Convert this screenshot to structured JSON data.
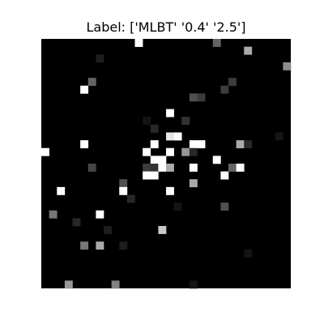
{
  "chart_data": {
    "type": "heatmap",
    "title": "Label: ['MLBT' '0.4' '2.5']",
    "rows": 32,
    "cols": 32,
    "colormap": "gray",
    "background_value": 0,
    "axes_visible": false,
    "cells": [
      [
        0,
        12,
        255
      ],
      [
        0,
        22,
        100
      ],
      [
        1,
        26,
        170
      ],
      [
        2,
        7,
        30
      ],
      [
        3,
        31,
        140
      ],
      [
        5,
        6,
        100
      ],
      [
        5,
        24,
        60
      ],
      [
        6,
        5,
        255
      ],
      [
        6,
        23,
        60
      ],
      [
        7,
        19,
        80
      ],
      [
        7,
        20,
        60
      ],
      [
        9,
        16,
        255
      ],
      [
        10,
        13,
        20
      ],
      [
        10,
        18,
        50
      ],
      [
        11,
        14,
        40
      ],
      [
        12,
        16,
        230
      ],
      [
        12,
        17,
        255
      ],
      [
        12,
        30,
        20
      ],
      [
        13,
        5,
        255
      ],
      [
        13,
        14,
        255
      ],
      [
        13,
        19,
        255
      ],
      [
        13,
        20,
        255
      ],
      [
        13,
        25,
        170
      ],
      [
        13,
        26,
        40
      ],
      [
        14,
        0,
        255
      ],
      [
        14,
        13,
        255
      ],
      [
        14,
        16,
        255
      ],
      [
        14,
        18,
        150
      ],
      [
        14,
        19,
        40
      ],
      [
        15,
        14,
        255
      ],
      [
        15,
        15,
        255
      ],
      [
        15,
        22,
        255
      ],
      [
        16,
        6,
        70
      ],
      [
        16,
        13,
        60
      ],
      [
        16,
        14,
        50
      ],
      [
        16,
        15,
        255
      ],
      [
        16,
        16,
        170
      ],
      [
        16,
        19,
        255
      ],
      [
        16,
        24,
        100
      ],
      [
        16,
        25,
        255
      ],
      [
        17,
        13,
        255
      ],
      [
        17,
        14,
        255
      ],
      [
        17,
        23,
        255
      ],
      [
        18,
        10,
        80
      ],
      [
        18,
        19,
        170
      ],
      [
        19,
        2,
        255
      ],
      [
        19,
        10,
        255
      ],
      [
        19,
        16,
        255
      ],
      [
        20,
        11,
        40
      ],
      [
        21,
        17,
        20
      ],
      [
        21,
        23,
        80
      ],
      [
        22,
        1,
        120
      ],
      [
        22,
        7,
        255
      ],
      [
        23,
        4,
        40
      ],
      [
        24,
        8,
        30
      ],
      [
        24,
        15,
        200
      ],
      [
        26,
        5,
        120
      ],
      [
        26,
        7,
        170
      ],
      [
        26,
        10,
        30
      ],
      [
        27,
        26,
        20
      ],
      [
        31,
        3,
        150
      ],
      [
        31,
        9,
        130
      ],
      [
        31,
        19,
        20
      ]
    ]
  }
}
